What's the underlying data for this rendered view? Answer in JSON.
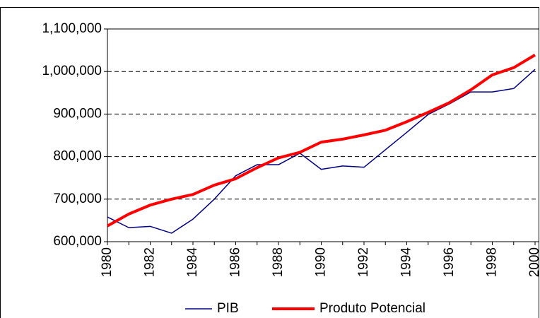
{
  "chart_data": {
    "type": "line",
    "x": [
      1980,
      1981,
      1982,
      1983,
      1984,
      1985,
      1986,
      1987,
      1988,
      1989,
      1990,
      1991,
      1992,
      1993,
      1994,
      1995,
      1996,
      1997,
      1998,
      1999,
      2000
    ],
    "series": [
      {
        "name": "PIB",
        "color": "#000080",
        "values": [
          658000,
          633000,
          636000,
          620000,
          653000,
          700000,
          755000,
          781000,
          781000,
          808000,
          770000,
          778000,
          775000,
          816000,
          857000,
          899000,
          924000,
          952000,
          952000,
          960000,
          1005000
        ]
      },
      {
        "name": "Produto Potencial",
        "color": "#ff0000",
        "values": [
          637000,
          665000,
          686000,
          700000,
          711000,
          733000,
          748000,
          774000,
          797000,
          810000,
          834000,
          841000,
          851000,
          862000,
          882000,
          904000,
          927000,
          957000,
          992000,
          1009000,
          1039000
        ]
      }
    ],
    "xlim": [
      1980,
      2000
    ],
    "xticks": [
      1980,
      1982,
      1984,
      1986,
      1988,
      1990,
      1992,
      1994,
      1996,
      1998,
      2000
    ],
    "ylim": [
      600000,
      1100000
    ],
    "yticks": [
      {
        "value": 600000,
        "label": "600,000"
      },
      {
        "value": 700000,
        "label": "700,000"
      },
      {
        "value": 800000,
        "label": "800,000"
      },
      {
        "value": 900000,
        "label": "900,000"
      },
      {
        "value": 1000000,
        "label": "1,000,000"
      },
      {
        "value": 1100000,
        "label": "1,100,000"
      }
    ],
    "grid": true,
    "legend": "bottom"
  }
}
